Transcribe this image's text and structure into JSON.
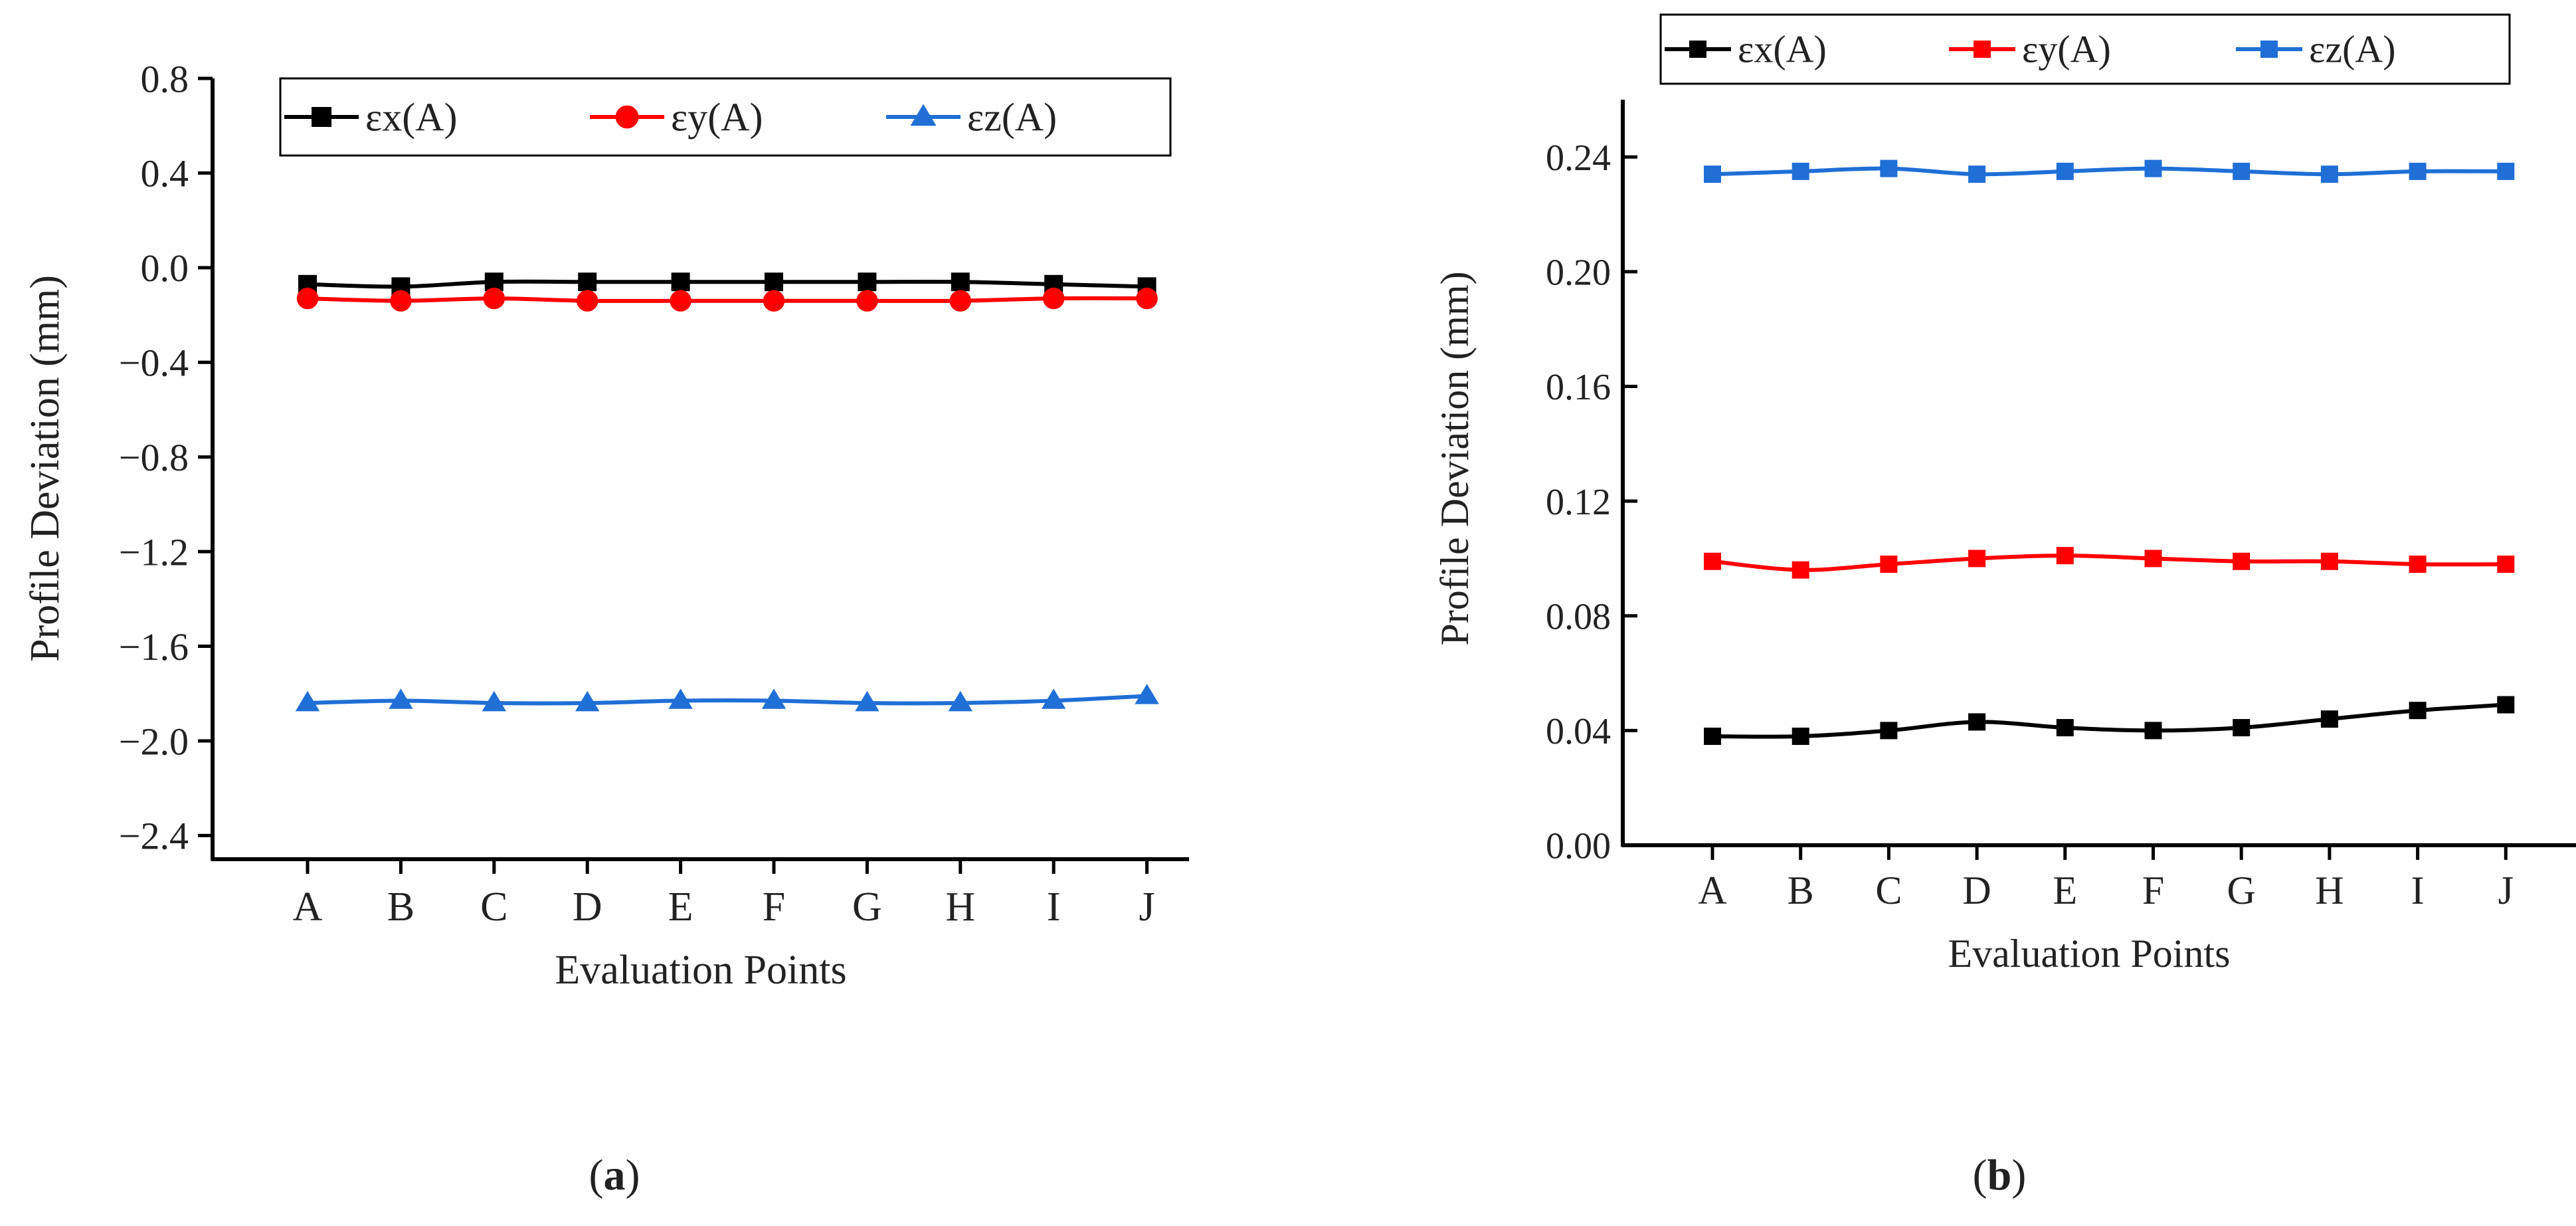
{
  "figure": {
    "panel_labels": [
      "(a)",
      "(b)"
    ]
  },
  "chart_data": [
    {
      "type": "line",
      "panel": "a",
      "panel_label": "(a)",
      "xlabel": "Evaluation Points",
      "ylabel": "Profile Deviation (mm)",
      "categories": [
        "A",
        "B",
        "C",
        "D",
        "E",
        "F",
        "G",
        "H",
        "I",
        "J"
      ],
      "ylim": [
        -2.5,
        0.8
      ],
      "yticks": [
        0.8,
        0.4,
        0.0,
        -0.4,
        -0.8,
        -1.2,
        -1.6,
        -2.0,
        -2.4
      ],
      "ytick_labels": [
        "0.8",
        "0.4",
        "0.0",
        "−0.4",
        "−0.8",
        "−1.2",
        "−1.6",
        "−2.0",
        "−2.4"
      ],
      "legend_position": "top-right",
      "series": [
        {
          "name": "εx(A)",
          "color": "#000000",
          "marker": "square",
          "values": [
            -0.07,
            -0.08,
            -0.06,
            -0.06,
            -0.06,
            -0.06,
            -0.06,
            -0.06,
            -0.07,
            -0.08
          ]
        },
        {
          "name": "εy(A)",
          "color": "#ff0000",
          "marker": "circle",
          "values": [
            -0.13,
            -0.14,
            -0.13,
            -0.14,
            -0.14,
            -0.14,
            -0.14,
            -0.14,
            -0.13,
            -0.13
          ]
        },
        {
          "name": "εz(A)",
          "color": "#1f6fd6",
          "marker": "triangle",
          "values": [
            -1.84,
            -1.83,
            -1.84,
            -1.84,
            -1.83,
            -1.83,
            -1.84,
            -1.84,
            -1.83,
            -1.81
          ]
        }
      ]
    },
    {
      "type": "line",
      "panel": "b",
      "panel_label": "(b)",
      "xlabel": "Evaluation Points",
      "ylabel": "Profile Deviation (mm)",
      "categories": [
        "A",
        "B",
        "C",
        "D",
        "E",
        "F",
        "G",
        "H",
        "I",
        "J"
      ],
      "ylim": [
        0.0,
        0.26
      ],
      "yticks": [
        0.0,
        0.04,
        0.08,
        0.12,
        0.16,
        0.2,
        0.24
      ],
      "ytick_labels": [
        "0.00",
        "0.04",
        "0.08",
        "0.12",
        "0.16",
        "0.20",
        "0.24"
      ],
      "legend_position": "top",
      "series": [
        {
          "name": "εx(A)",
          "color": "#000000",
          "marker": "square",
          "values": [
            0.038,
            0.038,
            0.04,
            0.043,
            0.041,
            0.04,
            0.041,
            0.044,
            0.047,
            0.049
          ]
        },
        {
          "name": "εy(A)",
          "color": "#ff0000",
          "marker": "square",
          "values": [
            0.099,
            0.096,
            0.098,
            0.1,
            0.101,
            0.1,
            0.099,
            0.099,
            0.098,
            0.098
          ]
        },
        {
          "name": "εz(A)",
          "color": "#1f6fd6",
          "marker": "square",
          "values": [
            0.234,
            0.235,
            0.236,
            0.234,
            0.235,
            0.236,
            0.235,
            0.234,
            0.235,
            0.235
          ]
        }
      ]
    }
  ]
}
